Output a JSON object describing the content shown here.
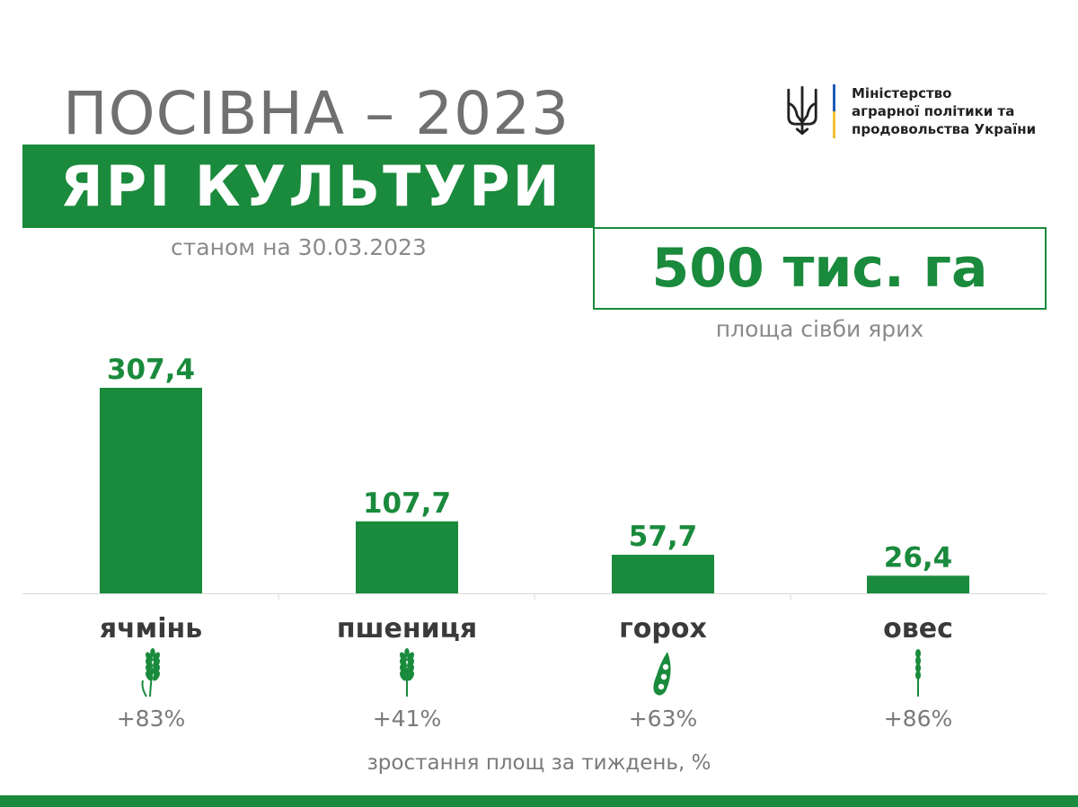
{
  "header": {
    "title": "ПОСІВНА – 2023",
    "banner": "ЯРІ КУЛЬТУРИ",
    "as_of": "станом на 30.03.2023"
  },
  "logo": {
    "icon": "trident-icon",
    "lines": [
      "Міністерство",
      "аграрної політики та",
      "продовольства України"
    ],
    "colors": {
      "blue": "#1e5bb8",
      "yellow": "#f2c230"
    }
  },
  "total": {
    "value": "500 тис. га",
    "caption": "площа сівби ярих"
  },
  "chart_data": {
    "type": "bar",
    "categories": [
      "ячмінь",
      "пшениця",
      "горох",
      "овес"
    ],
    "values": [
      307.4,
      107.7,
      57.7,
      26.4
    ],
    "value_labels": [
      "307,4",
      "107,7",
      "57,7",
      "26,4"
    ],
    "growth": [
      "+83%",
      "+41%",
      "+63%",
      "+86%"
    ],
    "icons": [
      "barley-icon",
      "wheat-icon",
      "pea-pod-icon",
      "oat-icon"
    ],
    "ylim": [
      0,
      307.4
    ],
    "grid": false,
    "footnote": "зростання площ за тиждень, %",
    "bar_color": "#1a8a3c"
  },
  "colors": {
    "accent": "#1a8a3c",
    "title_gray": "#707070",
    "text_gray": "#8a8a8a"
  }
}
